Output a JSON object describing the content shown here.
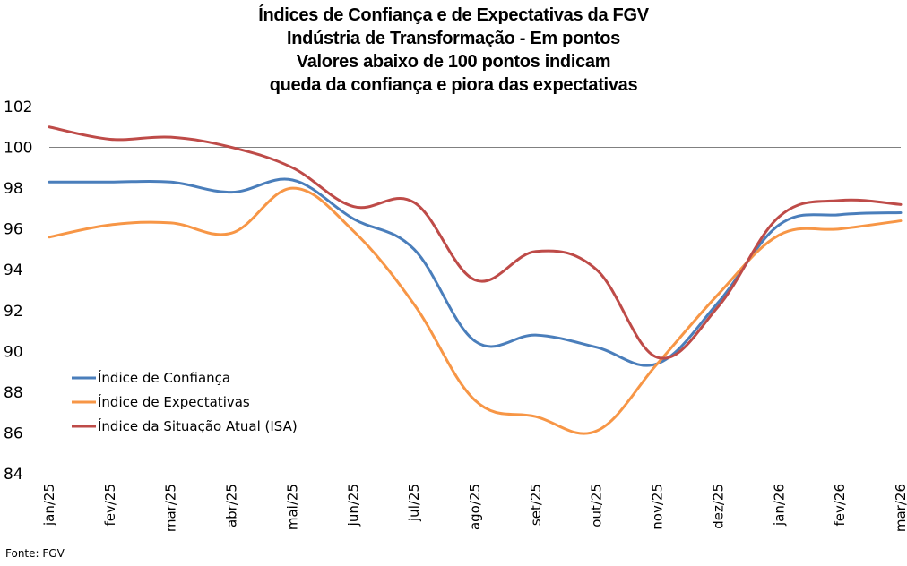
{
  "chart_data": {
    "type": "line",
    "title_lines": [
      "Índices de Confiança e de Expectativas da FGV",
      "Indústria de Transformação - Em pontos",
      "Valores abaixo de 100 pontos indicam",
      "queda da confiança e piora das expectativas"
    ],
    "xlabel": "",
    "ylabel": "",
    "ylim": [
      84,
      102
    ],
    "yticks": [
      84,
      86,
      88,
      90,
      92,
      94,
      96,
      98,
      100,
      102
    ],
    "reference_line": 100,
    "grid": false,
    "legend_position": "lower-left",
    "categories": [
      "jan/25",
      "fev/25",
      "mar/25",
      "abr/25",
      "mai/25",
      "jun/25",
      "jul/25",
      "ago/25",
      "set/25",
      "out/25",
      "nov/25",
      "dez/25",
      "jan/26",
      "fev/26",
      "mar/26"
    ],
    "series": [
      {
        "name": "Índice de Confiança",
        "color": "#4a7ebb",
        "values": [
          98.3,
          98.3,
          98.3,
          97.8,
          98.4,
          96.5,
          95.0,
          90.5,
          90.8,
          90.2,
          89.4,
          92.4,
          96.2,
          96.7,
          96.8
        ]
      },
      {
        "name": "Índice de Expectativas",
        "color": "#f79646",
        "values": [
          95.6,
          96.2,
          96.3,
          95.8,
          98.0,
          95.9,
          92.3,
          87.6,
          86.8,
          86.1,
          89.4,
          92.8,
          95.7,
          96.0,
          96.4
        ]
      },
      {
        "name": "Índice da Situação Atual (ISA)",
        "color": "#be4b48",
        "values": [
          101.0,
          100.4,
          100.5,
          100.0,
          99.0,
          97.1,
          97.3,
          93.5,
          94.9,
          94.0,
          89.7,
          92.2,
          96.6,
          97.4,
          97.2
        ]
      }
    ],
    "reference_line_color": "#808080"
  },
  "source": "Fonte: FGV"
}
